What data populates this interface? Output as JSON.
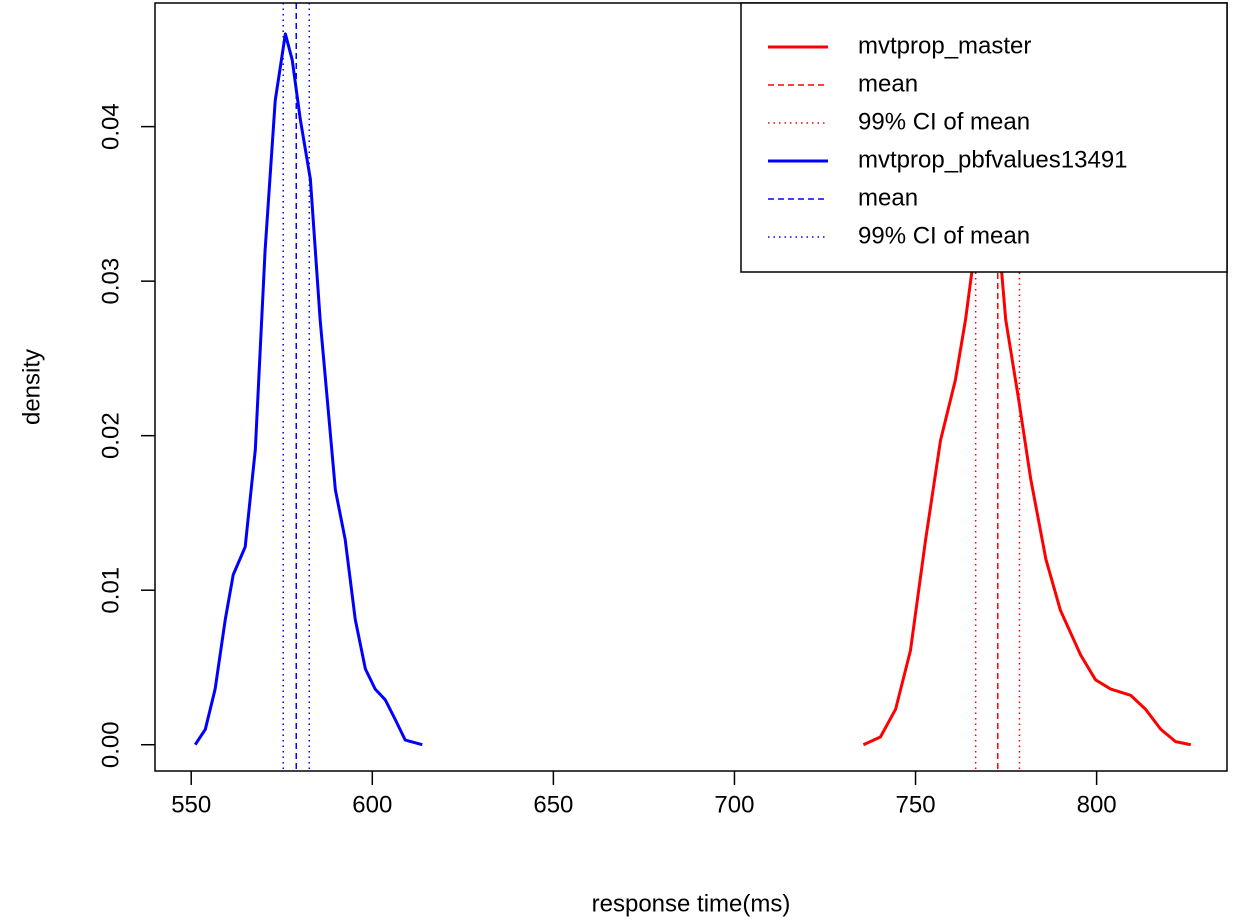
{
  "chart_data": {
    "type": "line",
    "x_label": "response time(ms)",
    "y_label": "density",
    "xlim": [
      540,
      836
    ],
    "ylim": [
      -0.0017,
      0.048
    ],
    "xticks": [
      550,
      600,
      650,
      700,
      750,
      800
    ],
    "yticks": [
      {
        "value": 0,
        "label": "0.00"
      },
      0.01,
      0.02,
      0.03,
      0.04
    ],
    "legend": "top-right",
    "series": [
      {
        "name": "mvtprop_master",
        "color": "#ff0000",
        "linestyle": "solid",
        "x": [
          735.6,
          740.3,
          744.5,
          748.6,
          752.8,
          756.9,
          761.0,
          763.8,
          766.0,
          767.9,
          770.0,
          772.0,
          774.9,
          778.5,
          781.8,
          786.0,
          790.0,
          795.6,
          799.7,
          803.9,
          809.4,
          813.5,
          817.7,
          821.8,
          826.0
        ],
        "values": [
          0,
          0.0005,
          0.0023,
          0.0061,
          0.0133,
          0.0197,
          0.0236,
          0.0275,
          0.0314,
          0.0346,
          0.0368,
          0.0355,
          0.0275,
          0.0223,
          0.0172,
          0.012,
          0.0087,
          0.0058,
          0.0042,
          0.0036,
          0.0032,
          0.0023,
          0.001,
          0.0002,
          0
        ]
      },
      {
        "name": "mean",
        "color": "#ff0000",
        "linestyle": "dashed",
        "xintercepts": [
          772.7
        ]
      },
      {
        "name": "99% CI  of mean",
        "color": "#ff0000",
        "linestyle": "dotted",
        "xintercepts": [
          766.6,
          778.7
        ]
      },
      {
        "name": "mvtprop_pbfvalues13491",
        "color": "#0000ff",
        "linestyle": "solid",
        "x": [
          551.1,
          553.9,
          556.6,
          559.4,
          561.6,
          564.9,
          567.7,
          570.4,
          573.2,
          576.0,
          577.9,
          580.1,
          582.9,
          585.6,
          589.8,
          592.5,
          595.3,
          598.1,
          600.8,
          603.6,
          606.4,
          609.1,
          613.8
        ],
        "values": [
          0,
          0.001,
          0.0036,
          0.0081,
          0.011,
          0.0128,
          0.0191,
          0.032,
          0.0417,
          0.046,
          0.0443,
          0.0405,
          0.0366,
          0.0275,
          0.0165,
          0.0133,
          0.0081,
          0.0049,
          0.0036,
          0.0029,
          0.0016,
          0.0003,
          0
        ]
      },
      {
        "name": "mean",
        "color": "#0000ff",
        "linestyle": "dashed",
        "xintercepts": [
          579.0
        ]
      },
      {
        "name": "99% CI  of mean",
        "color": "#0000ff",
        "linestyle": "dotted",
        "xintercepts": [
          575.4,
          582.6
        ]
      }
    ]
  }
}
